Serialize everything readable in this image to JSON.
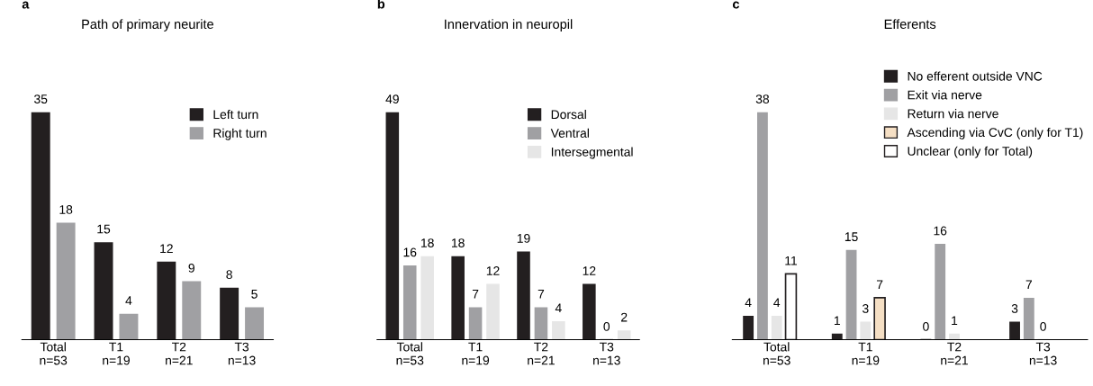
{
  "chart_data": [
    {
      "type": "bar",
      "title": "Path of primary neurite",
      "annotations": [
        "a"
      ],
      "categories": [
        "Total\nn=53",
        "T1\nn=19",
        "T2\nn=21",
        "T3\nn=13"
      ],
      "data_labels": true,
      "legend": "top right",
      "series": [
        {
          "name": "Left turn",
          "color": "#231f20",
          "values": [
            35,
            15,
            12,
            8
          ]
        },
        {
          "name": "Right turn",
          "color": "#a0a0a3",
          "values": [
            18,
            4,
            9,
            5
          ]
        }
      ]
    },
    {
      "type": "bar",
      "title": "Innervation in neuropil",
      "annotations": [
        "b"
      ],
      "categories": [
        "Total\nn=53",
        "T1\nn=19",
        "T2\nn=21",
        "T3\nn=13"
      ],
      "data_labels": true,
      "legend": "top right",
      "series": [
        {
          "name": "Dorsal",
          "color": "#231f20",
          "values": [
            49,
            18,
            19,
            12
          ]
        },
        {
          "name": "Ventral",
          "color": "#a0a0a3",
          "values": [
            16,
            7,
            7,
            0
          ]
        },
        {
          "name": "Intersegmental",
          "color": "#e6e6e6",
          "values": [
            18,
            12,
            4,
            2
          ]
        }
      ]
    },
    {
      "type": "bar",
      "title": "Efferents",
      "annotations": [
        "c"
      ],
      "categories": [
        "Total\nn=53",
        "T1\nn=19",
        "T2\nn=21",
        "T3\nn=13"
      ],
      "data_labels": true,
      "legend": "top right",
      "series": [
        {
          "name": "No efferent outside VNC",
          "color": "#231f20",
          "values": [
            4,
            1,
            0,
            3
          ]
        },
        {
          "name": "Exit via nerve",
          "color": "#a0a0a3",
          "values": [
            38,
            15,
            16,
            7
          ]
        },
        {
          "name": "Return via nerve",
          "color": "#e6e6e6",
          "values": [
            4,
            3,
            1,
            0
          ]
        },
        {
          "name": "Ascending via CvC (only for T1)",
          "color": "#f5dfc4",
          "values": [
            null,
            7,
            null,
            null
          ]
        },
        {
          "name": "Unclear (only for Total)",
          "color": "#ffffff",
          "values": [
            11,
            null,
            null,
            null
          ]
        }
      ]
    }
  ]
}
